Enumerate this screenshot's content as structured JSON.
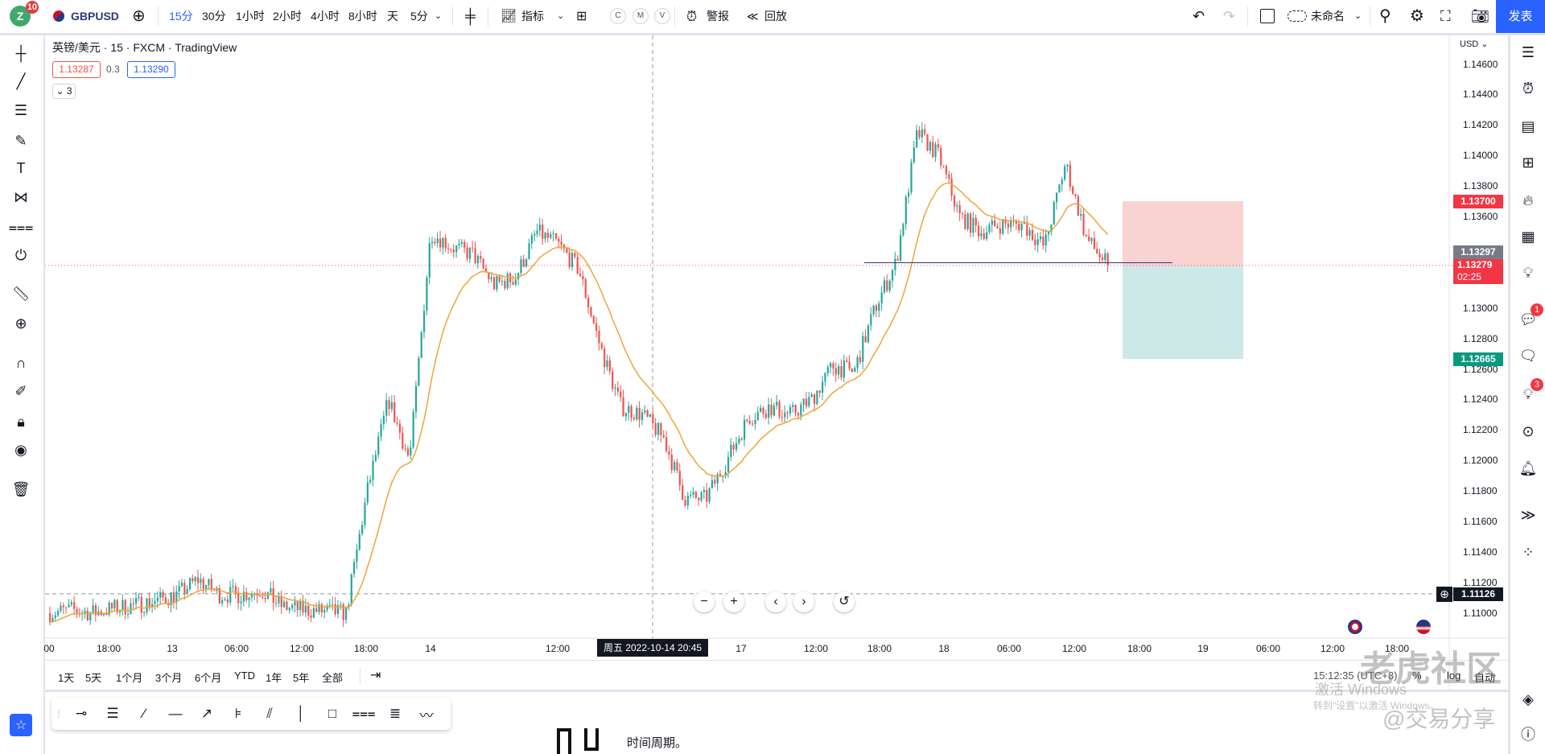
{
  "topbar": {
    "avatar_letter": "Z",
    "notification_count": "10",
    "symbol": "GBPUSD",
    "intervals": [
      "15分",
      "30分",
      "1小时",
      "2小时",
      "4小时",
      "8小时",
      "天",
      "5分"
    ],
    "active_interval": "15分",
    "indicators_label": "指标",
    "compare_buttons": [
      "C",
      "M",
      "V"
    ],
    "alert_label": "警报",
    "replay_label": "回放",
    "layout_name": "未命名",
    "publish_label": "发表"
  },
  "legend": {
    "title": "英镑/美元 · 15 · FXCM · TradingView",
    "bid": "1.13287",
    "spread": "0.3",
    "ask": "1.13290",
    "collapse_count": "3"
  },
  "price_axis": {
    "currency": "USD",
    "ticks": [
      "1.14600",
      "1.14400",
      "1.14200",
      "1.14000",
      "1.13800",
      "1.13600",
      "1.13000",
      "1.12800",
      "1.12600",
      "1.12400",
      "1.12200",
      "1.12000",
      "1.11800",
      "1.11600",
      "1.11400",
      "1.11200",
      "1.11000"
    ],
    "labels": {
      "take_profit": "1.13700",
      "entry": "1.13297",
      "last_price": "1.13279",
      "countdown": "02:25",
      "stop": "1.12665",
      "crosshair": "1.11126"
    }
  },
  "time_axis": {
    "ticks": [
      "00",
      "18:00",
      "13",
      "06:00",
      "12:00",
      "18:00",
      "14",
      "12:00",
      "17",
      "12:00",
      "18:00",
      "18",
      "06:00",
      "12:00",
      "18:00",
      "19",
      "06:00",
      "12:00",
      "18:00"
    ],
    "crosshair_label": "周五 2022-10-14  20:45"
  },
  "range_bar": {
    "ranges": [
      "1天",
      "5天",
      "1个月",
      "3个月",
      "6个月",
      "YTD",
      "1年",
      "5年",
      "全部"
    ],
    "clock": "15:12:35 (UTC+8)",
    "percent": "%",
    "log": "log",
    "auto": "自动"
  },
  "right_sidebar": {
    "chat_badge": "1",
    "ideas_badge": "3"
  },
  "colors": {
    "up": "#26a69a",
    "down": "#ef5350",
    "ma": "#f2a33a",
    "accent": "#2962ff",
    "target_zone": "#f9d2d2",
    "stop_zone": "#cde9e7"
  },
  "page_text": {
    "article_line": "时间周期。"
  },
  "watermarks": [
    "老虎社区",
    "@交易分享",
    "激活 Windows",
    "转到\"设置\"以激活 Windows。"
  ],
  "chart_data": {
    "type": "candlestick",
    "symbol": "GBPUSD",
    "interval": "15",
    "ylim": [
      1.1095,
      1.1475
    ],
    "approx_close_path_every_2h": [
      1.11,
      1.1102,
      1.11,
      1.1103,
      1.1105,
      1.1108,
      1.1112,
      1.1122,
      1.1112,
      1.1112,
      1.1115,
      1.1104,
      1.1102,
      1.1101,
      1.11,
      1.118,
      1.124,
      1.12,
      1.135,
      1.134,
      1.1335,
      1.1315,
      1.132,
      1.135,
      1.1342,
      1.1325,
      1.1275,
      1.1235,
      1.123,
      1.1215,
      1.1175,
      1.1175,
      1.12,
      1.1228,
      1.1235,
      1.123,
      1.124,
      1.1262,
      1.1258,
      1.13,
      1.133,
      1.1415,
      1.14,
      1.136,
      1.135,
      1.1355,
      1.1355,
      1.134,
      1.1395,
      1.1345,
      1.13279
    ],
    "moving_average": "EMA 20",
    "position": {
      "entry": 1.13297,
      "target": 1.137,
      "stop": 1.12665
    },
    "horizontal_line": 1.13297,
    "last_price": 1.13279,
    "crosshair_price": 1.11126
  }
}
